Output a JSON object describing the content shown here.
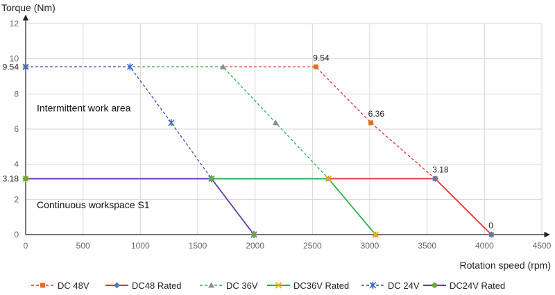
{
  "chart_data": {
    "type": "line",
    "xlabel": "Rotation speed (rpm)",
    "ylabel": "Torque (Nm)",
    "xlim": [
      0,
      4500
    ],
    "ylim": [
      0,
      12
    ],
    "xticks": [
      0,
      500,
      1000,
      1500,
      2000,
      2500,
      3000,
      3500,
      4000,
      4500
    ],
    "yticks": [
      0,
      2,
      4,
      6,
      8,
      10,
      12
    ],
    "extra_y_labels": [
      "9.54",
      "3.18"
    ],
    "grid": true,
    "legend_position": "bottom",
    "annotations": [
      {
        "text": "Intermittent work area",
        "x": 50,
        "y": 7.0
      },
      {
        "text": "Continuous workspace S1",
        "x": 50,
        "y": 1.5
      }
    ],
    "series": [
      {
        "name": "DC  48V",
        "color": "#e8312f",
        "marker_color": "#e07020",
        "marker": "square",
        "dash": true,
        "x": [
          0,
          2530,
          3010,
          3570,
          4060
        ],
        "y": [
          9.54,
          9.54,
          6.36,
          3.18,
          0
        ],
        "labels": [
          null,
          "9.54",
          "6.36",
          "3.18",
          "0"
        ]
      },
      {
        "name": "DC48  Rated",
        "color": "#e8312f",
        "marker_color": "#4a7ec0",
        "marker": "diamond",
        "dash": false,
        "x": [
          0,
          3570,
          4060
        ],
        "y": [
          3.18,
          3.18,
          0
        ],
        "labels": [
          null,
          null,
          null
        ]
      },
      {
        "name": "DC  36V",
        "color": "#2bb04a",
        "marker_color": "#8c8c8c",
        "marker": "triangle",
        "dash": true,
        "x": [
          0,
          1720,
          2180,
          2640,
          3050
        ],
        "y": [
          9.54,
          9.54,
          6.36,
          3.18,
          0
        ],
        "labels": [
          null,
          null,
          null,
          null,
          null
        ]
      },
      {
        "name": "DC36V  Rated",
        "color": "#2bb04a",
        "marker_color": "#f0b400",
        "marker": "x",
        "dash": false,
        "x": [
          0,
          2640,
          3050
        ],
        "y": [
          3.18,
          3.18,
          0
        ],
        "labels": [
          null,
          null,
          null
        ]
      },
      {
        "name": "DC  24V",
        "color": "#3a4ec0",
        "marker_color": "#3a6ad0",
        "marker": "star",
        "dash": true,
        "x": [
          0,
          910,
          1270,
          1620,
          1990
        ],
        "y": [
          9.54,
          9.54,
          6.36,
          3.18,
          0
        ],
        "labels": [
          null,
          null,
          null,
          null,
          null
        ]
      },
      {
        "name": "DC24V  Rated",
        "color": "#6a38a8",
        "marker_color": "#6aa83a",
        "marker": "circle",
        "dash": false,
        "x": [
          0,
          1620,
          1990
        ],
        "y": [
          3.18,
          3.18,
          0
        ],
        "labels": [
          null,
          null,
          null
        ]
      }
    ]
  }
}
